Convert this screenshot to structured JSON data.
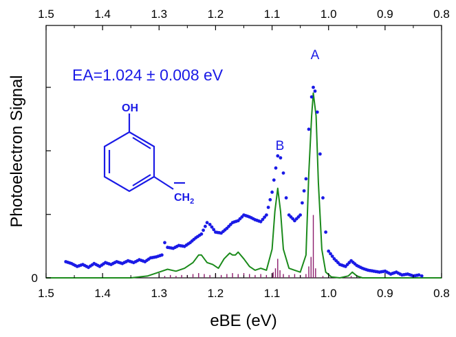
{
  "chart_data": {
    "type": "line",
    "xlabel": "eBE (eV)",
    "ylabel": "Photoelectron Signal",
    "x_ticks": [
      "1.5",
      "1.4",
      "1.3",
      "1.2",
      "1.1",
      "1.0",
      "0.9",
      "0.8"
    ],
    "y_ticks": [
      "0"
    ],
    "xlim": [
      1.5,
      0.8
    ],
    "x_reversed": true,
    "ylim": [
      0,
      1.12
    ],
    "annotations": {
      "ea": "EA=1.024 ± 0.008 eV",
      "peak_a": "A",
      "peak_b": "B",
      "molecule_oh": "OH",
      "molecule_ch": "CH",
      "molecule_sub": "2"
    },
    "colors": {
      "experimental": "#1a1ae6",
      "simulated": "#1a8a1a",
      "sticks": "#8b1a6b",
      "annotation": "#1a1ae6"
    },
    "series": [
      {
        "style": "dots",
        "points": [
          [
            1.465,
            0.085
          ],
          [
            1.455,
            0.075
          ],
          [
            1.445,
            0.06
          ],
          [
            1.435,
            0.07
          ],
          [
            1.425,
            0.055
          ],
          [
            1.415,
            0.075
          ],
          [
            1.405,
            0.06
          ],
          [
            1.395,
            0.08
          ],
          [
            1.385,
            0.07
          ],
          [
            1.375,
            0.085
          ],
          [
            1.365,
            0.075
          ],
          [
            1.355,
            0.09
          ],
          [
            1.345,
            0.08
          ],
          [
            1.335,
            0.095
          ],
          [
            1.325,
            0.085
          ],
          [
            1.315,
            0.105
          ],
          [
            1.305,
            0.11
          ],
          [
            1.295,
            0.12
          ],
          [
            1.29,
            0.185
          ],
          [
            1.285,
            0.16
          ],
          [
            1.275,
            0.155
          ],
          [
            1.265,
            0.17
          ],
          [
            1.255,
            0.165
          ],
          [
            1.245,
            0.185
          ],
          [
            1.235,
            0.21
          ],
          [
            1.225,
            0.23
          ],
          [
            1.215,
            0.29
          ],
          [
            1.21,
            0.28
          ],
          [
            1.2,
            0.24
          ],
          [
            1.19,
            0.235
          ],
          [
            1.18,
            0.26
          ],
          [
            1.17,
            0.29
          ],
          [
            1.16,
            0.3
          ],
          [
            1.15,
            0.33
          ],
          [
            1.14,
            0.32
          ],
          [
            1.13,
            0.305
          ],
          [
            1.12,
            0.295
          ],
          [
            1.11,
            0.33
          ],
          [
            1.1,
            0.45
          ],
          [
            1.09,
            0.64
          ],
          [
            1.085,
            0.63
          ],
          [
            1.08,
            0.55
          ],
          [
            1.075,
            0.42
          ],
          [
            1.07,
            0.33
          ],
          [
            1.06,
            0.3
          ],
          [
            1.05,
            0.33
          ],
          [
            1.04,
            0.52
          ],
          [
            1.035,
            0.78
          ],
          [
            1.03,
            0.95
          ],
          [
            1.027,
            1.0
          ],
          [
            1.024,
            0.98
          ],
          [
            1.02,
            0.87
          ],
          [
            1.015,
            0.65
          ],
          [
            1.01,
            0.42
          ],
          [
            1.005,
            0.24
          ],
          [
            1.0,
            0.14
          ],
          [
            0.99,
            0.1
          ],
          [
            0.98,
            0.07
          ],
          [
            0.97,
            0.06
          ],
          [
            0.96,
            0.09
          ],
          [
            0.95,
            0.065
          ],
          [
            0.94,
            0.05
          ],
          [
            0.93,
            0.04
          ],
          [
            0.92,
            0.035
          ],
          [
            0.91,
            0.03
          ],
          [
            0.9,
            0.035
          ],
          [
            0.89,
            0.02
          ],
          [
            0.88,
            0.03
          ],
          [
            0.87,
            0.015
          ],
          [
            0.86,
            0.02
          ],
          [
            0.85,
            0.01
          ],
          [
            0.84,
            0.015
          ],
          [
            0.835,
            0.01
          ]
        ]
      },
      {
        "style": "line",
        "points": [
          [
            1.5,
            0.0
          ],
          [
            1.35,
            0.0
          ],
          [
            1.32,
            0.01
          ],
          [
            1.3,
            0.03
          ],
          [
            1.285,
            0.045
          ],
          [
            1.27,
            0.035
          ],
          [
            1.255,
            0.05
          ],
          [
            1.24,
            0.08
          ],
          [
            1.23,
            0.12
          ],
          [
            1.225,
            0.12
          ],
          [
            1.215,
            0.08
          ],
          [
            1.205,
            0.07
          ],
          [
            1.195,
            0.05
          ],
          [
            1.185,
            0.1
          ],
          [
            1.175,
            0.13
          ],
          [
            1.17,
            0.12
          ],
          [
            1.165,
            0.12
          ],
          [
            1.16,
            0.135
          ],
          [
            1.15,
            0.1
          ],
          [
            1.14,
            0.06
          ],
          [
            1.13,
            0.04
          ],
          [
            1.12,
            0.05
          ],
          [
            1.11,
            0.04
          ],
          [
            1.1,
            0.15
          ],
          [
            1.095,
            0.35
          ],
          [
            1.09,
            0.47
          ],
          [
            1.085,
            0.35
          ],
          [
            1.08,
            0.15
          ],
          [
            1.07,
            0.05
          ],
          [
            1.06,
            0.04
          ],
          [
            1.05,
            0.03
          ],
          [
            1.04,
            0.12
          ],
          [
            1.035,
            0.55
          ],
          [
            1.03,
            0.85
          ],
          [
            1.027,
            0.97
          ],
          [
            1.022,
            0.85
          ],
          [
            1.018,
            0.5
          ],
          [
            1.012,
            0.15
          ],
          [
            1.005,
            0.03
          ],
          [
            0.995,
            0.005
          ],
          [
            0.98,
            0.0
          ],
          [
            0.965,
            0.01
          ],
          [
            0.958,
            0.03
          ],
          [
            0.95,
            0.01
          ],
          [
            0.94,
            0.0
          ],
          [
            0.8,
            0.0
          ]
        ]
      },
      {
        "style": "sticks",
        "points": [
          [
            1.027,
            0.33
          ],
          [
            1.031,
            0.11
          ],
          [
            1.035,
            0.06
          ],
          [
            1.023,
            0.05
          ],
          [
            1.09,
            0.1
          ],
          [
            1.094,
            0.05
          ],
          [
            1.086,
            0.04
          ],
          [
            1.098,
            0.03
          ],
          [
            1.04,
            0.02
          ],
          [
            1.05,
            0.015
          ],
          [
            1.06,
            0.02
          ],
          [
            1.07,
            0.015
          ],
          [
            1.08,
            0.02
          ],
          [
            1.1,
            0.02
          ],
          [
            1.11,
            0.015
          ],
          [
            1.12,
            0.02
          ],
          [
            1.13,
            0.015
          ],
          [
            1.14,
            0.02
          ],
          [
            1.15,
            0.025
          ],
          [
            1.16,
            0.02
          ],
          [
            1.17,
            0.025
          ],
          [
            1.18,
            0.02
          ],
          [
            1.19,
            0.015
          ],
          [
            1.2,
            0.02
          ],
          [
            1.21,
            0.015
          ],
          [
            1.22,
            0.02
          ],
          [
            1.23,
            0.025
          ],
          [
            1.24,
            0.02
          ],
          [
            1.25,
            0.015
          ],
          [
            1.26,
            0.015
          ],
          [
            1.27,
            0.01
          ],
          [
            1.28,
            0.015
          ],
          [
            1.29,
            0.01
          ],
          [
            1.3,
            0.01
          ],
          [
            0.96,
            0.01
          ],
          [
            0.97,
            0.008
          ],
          [
            1.01,
            0.01
          ],
          [
            1.0,
            0.008
          ]
        ]
      }
    ]
  }
}
